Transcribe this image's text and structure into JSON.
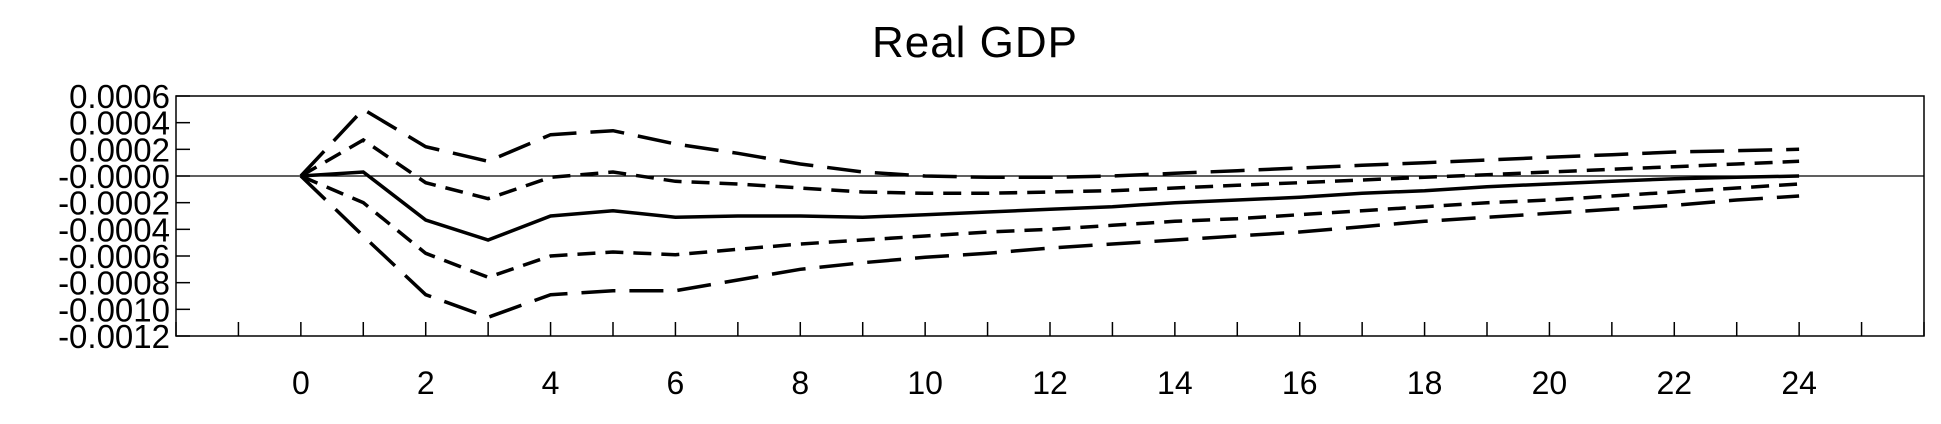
{
  "chart_data": {
    "type": "line",
    "title": "Real GDP",
    "xlabel": "",
    "ylabel": "",
    "x": [
      0,
      1,
      2,
      3,
      4,
      5,
      6,
      7,
      8,
      9,
      10,
      11,
      12,
      13,
      14,
      15,
      16,
      17,
      18,
      19,
      20,
      21,
      22,
      23,
      24
    ],
    "xlim": [
      -2,
      26
    ],
    "ylim": [
      -0.0012,
      0.0006
    ],
    "xticks": [
      0,
      2,
      4,
      6,
      8,
      10,
      12,
      14,
      16,
      18,
      20,
      22,
      24
    ],
    "xtick_labels": [
      "0",
      "2",
      "4",
      "6",
      "8",
      "10",
      "12",
      "14",
      "16",
      "18",
      "20",
      "22",
      "24"
    ],
    "yticks": [
      0.0006,
      0.0004,
      0.0002,
      0.0,
      -0.0002,
      -0.0004,
      -0.0006,
      -0.0008,
      -0.001,
      -0.0012
    ],
    "ytick_labels": [
      "0.0006",
      "0.0004",
      "0.0002",
      "-0.0000",
      "-0.0002",
      "-0.0004",
      "-0.0006",
      "-0.0008",
      "-0.0010",
      "-0.0012"
    ],
    "zero_line": true,
    "grid": false,
    "legend": "none",
    "series": [
      {
        "style": "long-dash",
        "values": [
          0,
          0.0005,
          0.00022,
          0.00011,
          0.00031,
          0.00034,
          0.00024,
          0.00017,
          9e-05,
          3e-05,
          0.0,
          -1e-05,
          -1e-05,
          0.0,
          2e-05,
          4e-05,
          6e-05,
          8e-05,
          0.0001,
          0.00012,
          0.00014,
          0.00016,
          0.00018,
          0.00019,
          0.0002
        ]
      },
      {
        "style": "short-dash",
        "values": [
          0,
          0.00027,
          -5e-05,
          -0.00017,
          -1e-05,
          3e-05,
          -4e-05,
          -6e-05,
          -9e-05,
          -0.00012,
          -0.00013,
          -0.00013,
          -0.00012,
          -0.00011,
          -9e-05,
          -7e-05,
          -5e-05,
          -3e-05,
          -1e-05,
          1e-05,
          3e-05,
          5e-05,
          7e-05,
          9e-05,
          0.00011
        ]
      },
      {
        "style": "solid",
        "values": [
          0,
          3e-05,
          -0.00033,
          -0.00048,
          -0.0003,
          -0.00026,
          -0.00031,
          -0.0003,
          -0.0003,
          -0.00031,
          -0.00029,
          -0.00027,
          -0.00025,
          -0.00023,
          -0.0002,
          -0.00018,
          -0.00016,
          -0.00013,
          -0.00011,
          -8e-05,
          -6e-05,
          -4e-05,
          -2e-05,
          -1e-05,
          0.0
        ]
      },
      {
        "style": "short-dash",
        "values": [
          0,
          -0.0002,
          -0.00058,
          -0.00076,
          -0.0006,
          -0.00057,
          -0.00059,
          -0.00055,
          -0.00051,
          -0.00048,
          -0.00045,
          -0.00042,
          -0.0004,
          -0.00037,
          -0.00034,
          -0.00032,
          -0.00029,
          -0.00026,
          -0.00023,
          -0.0002,
          -0.00018,
          -0.00015,
          -0.00012,
          -9e-05,
          -6e-05
        ]
      },
      {
        "style": "long-dash",
        "values": [
          0,
          -0.00045,
          -0.00089,
          -0.00106,
          -0.00089,
          -0.00086,
          -0.00086,
          -0.00078,
          -0.0007,
          -0.00065,
          -0.00061,
          -0.00058,
          -0.00054,
          -0.00051,
          -0.00048,
          -0.00045,
          -0.00042,
          -0.00038,
          -0.00034,
          -0.00031,
          -0.00028,
          -0.00025,
          -0.00022,
          -0.00018,
          -0.00015
        ]
      }
    ]
  }
}
